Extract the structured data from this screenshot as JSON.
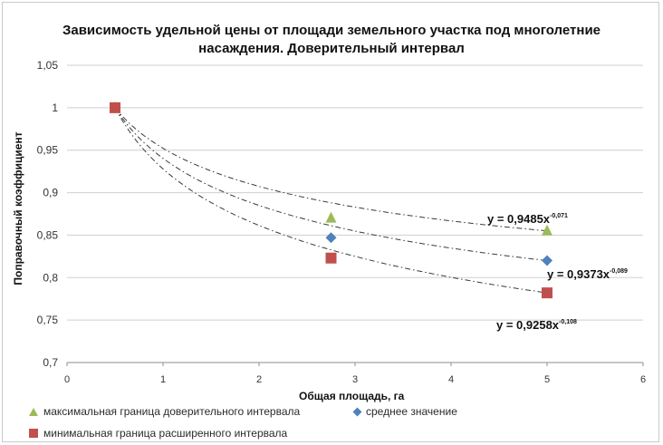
{
  "chart_data": {
    "type": "scatter",
    "title": "Зависимость удельной цены от площади земельного участка под многолетние насаждения. Доверительный интервал",
    "title_lines": [
      "Зависимость удельной цены от площади земельного участка под многолетние",
      "насаждения. Доверительный интервал"
    ],
    "xlabel": "Общая площадь, га",
    "ylabel": "Поправочный коэффициент",
    "xlim": [
      0,
      6
    ],
    "ylim": [
      0.7,
      1.05
    ],
    "x_ticks": [
      0,
      1,
      2,
      3,
      4,
      5,
      6
    ],
    "y_ticks": [
      0.7,
      0.75,
      0.8,
      0.85,
      0.9,
      0.95,
      1,
      1.05
    ],
    "x_tick_labels": [
      "0",
      "1",
      "2",
      "3",
      "4",
      "5",
      "6"
    ],
    "y_tick_labels": [
      "0,7",
      "0,75",
      "0,8",
      "0,85",
      "0,9",
      "0,95",
      "1",
      "1,05"
    ],
    "grid": "horizontal",
    "legend_position": "bottom",
    "series": [
      {
        "name": "максимальная граница доверительного интервала",
        "marker": "triangle",
        "color": "#9bbb59",
        "x": [
          0.5,
          2.75,
          5
        ],
        "y": [
          1.0,
          0.87,
          0.855
        ],
        "trend": {
          "a": 0.9485,
          "b": -0.071,
          "label_main": "y = 0,9485x",
          "label_exp": "-0,071"
        }
      },
      {
        "name": "среднее значение",
        "marker": "diamond",
        "color": "#4f81bd",
        "x": [
          0.5,
          2.75,
          5
        ],
        "y": [
          1.0,
          0.847,
          0.82
        ],
        "trend": {
          "a": 0.9373,
          "b": -0.089,
          "label_main": "y = 0,9373x",
          "label_exp": "-0,089"
        }
      },
      {
        "name": "минимальная граница расширенного интервала",
        "marker": "square",
        "color": "#c0504d",
        "x": [
          0.5,
          2.75,
          5
        ],
        "y": [
          1.0,
          0.823,
          0.782
        ],
        "trend": {
          "a": 0.9258,
          "b": -0.108,
          "label_main": "y = 0,9258x",
          "label_exp": "-0,108"
        }
      }
    ]
  }
}
